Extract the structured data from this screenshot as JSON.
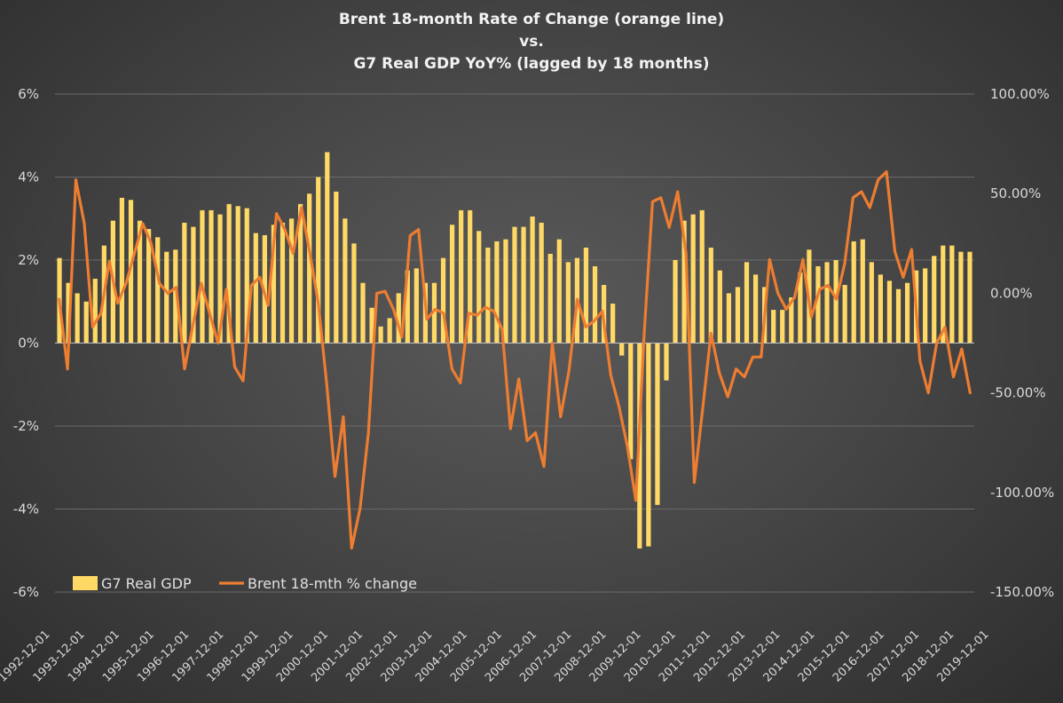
{
  "chart_data": {
    "type": "bar+line",
    "title": [
      "Brent 18-month Rate of Change (orange line)",
      "vs.",
      "G7 Real GDP YoY% (lagged by 18 months)"
    ],
    "x_labels": [
      "1992-12-01",
      "1993-12-01",
      "1994-12-01",
      "1995-12-01",
      "1996-12-01",
      "1997-12-01",
      "1998-12-01",
      "1999-12-01",
      "2000-12-01",
      "2001-12-01",
      "2002-12-01",
      "2003-12-01",
      "2004-12-01",
      "2005-12-01",
      "2006-12-01",
      "2007-12-01",
      "2008-12-01",
      "2009-12-01",
      "2010-12-01",
      "2011-12-01",
      "2012-12-01",
      "2013-12-01",
      "2014-12-01",
      "2015-12-01",
      "2016-12-01",
      "2017-12-01",
      "2018-12-01",
      "2019-12-01"
    ],
    "y_left": {
      "min": -6,
      "max": 6,
      "ticks": [
        "6%",
        "4%",
        "2%",
        "0%",
        "-2%",
        "-4%",
        "-6%"
      ]
    },
    "y_right": {
      "min": -150,
      "max": 100,
      "ticks": [
        "100.00%",
        "50.00%",
        "0.00%",
        "-50.00%",
        "-100.00%",
        "-150.00%"
      ]
    },
    "colors": {
      "bar": "#ffd966",
      "line": "#ed7d31",
      "grid": "#6a6a6a",
      "text": "#d9d9d9"
    },
    "series": [
      {
        "name": "G7 Real GDP",
        "type": "bar",
        "axis": "left",
        "values": [
          2.05,
          1.45,
          1.2,
          1.0,
          1.55,
          2.35,
          2.95,
          3.5,
          3.45,
          2.95,
          2.75,
          2.55,
          2.2,
          2.25,
          2.9,
          2.8,
          3.2,
          3.2,
          3.1,
          3.35,
          3.3,
          3.25,
          2.65,
          2.6,
          2.85,
          2.9,
          3.0,
          3.35,
          3.6,
          4.0,
          4.6,
          3.65,
          3.0,
          2.4,
          1.45,
          0.85,
          0.4,
          0.6,
          1.2,
          1.75,
          1.8,
          1.45,
          1.45,
          2.05,
          2.85,
          3.2,
          3.2,
          2.7,
          2.3,
          2.45,
          2.5,
          2.8,
          2.8,
          3.05,
          2.9,
          2.15,
          2.5,
          1.95,
          2.05,
          2.3,
          1.85,
          1.4,
          0.95,
          -0.3,
          -2.8,
          -4.95,
          -4.9,
          -3.9,
          -0.9,
          2.0,
          2.95,
          3.1,
          3.2,
          2.3,
          1.75,
          1.2,
          1.35,
          1.95,
          1.65,
          1.35,
          0.8,
          0.8,
          1.1,
          1.7,
          2.25,
          1.85,
          1.95,
          2.0,
          1.4,
          2.45,
          2.5,
          1.95,
          1.65,
          1.5,
          1.3,
          1.45,
          1.75,
          1.8,
          2.1,
          2.35,
          2.35,
          2.2,
          2.2
        ]
      },
      {
        "name": "Brent 18-mth % change",
        "type": "line",
        "axis": "right",
        "values": [
          -3,
          -38,
          57,
          35,
          -17,
          -10,
          16,
          -5,
          5,
          20,
          35,
          25,
          5,
          0,
          3,
          -38,
          -16,
          5,
          -10,
          -25,
          2,
          -37,
          -44,
          4,
          8,
          -6,
          40,
          32,
          20,
          43,
          20,
          -5,
          -45,
          -92,
          -62,
          -128,
          -108,
          -70,
          0,
          1,
          -8,
          -22,
          29,
          32,
          -13,
          -8,
          -10,
          -38,
          -45,
          -10,
          -11,
          -7,
          -9,
          -18,
          -68,
          -43,
          -74,
          -70,
          -87,
          -25,
          -62,
          -39,
          -3,
          -17,
          -14,
          -9,
          -41,
          -57,
          -77,
          -104,
          -20,
          46,
          48,
          33,
          51,
          20,
          -95,
          -58,
          -20,
          -40,
          -52,
          -38,
          -42,
          -32,
          -32,
          17,
          0,
          -8,
          -2,
          17,
          -12,
          2,
          4,
          -3,
          15,
          48,
          51,
          43,
          57,
          61,
          21,
          8,
          22,
          -34,
          -50,
          -25,
          -17,
          -42,
          -28,
          -50
        ]
      }
    ],
    "legend": {
      "position": "bottom-left",
      "items": [
        "G7 Real GDP",
        "Brent 18-mth % change"
      ]
    }
  }
}
